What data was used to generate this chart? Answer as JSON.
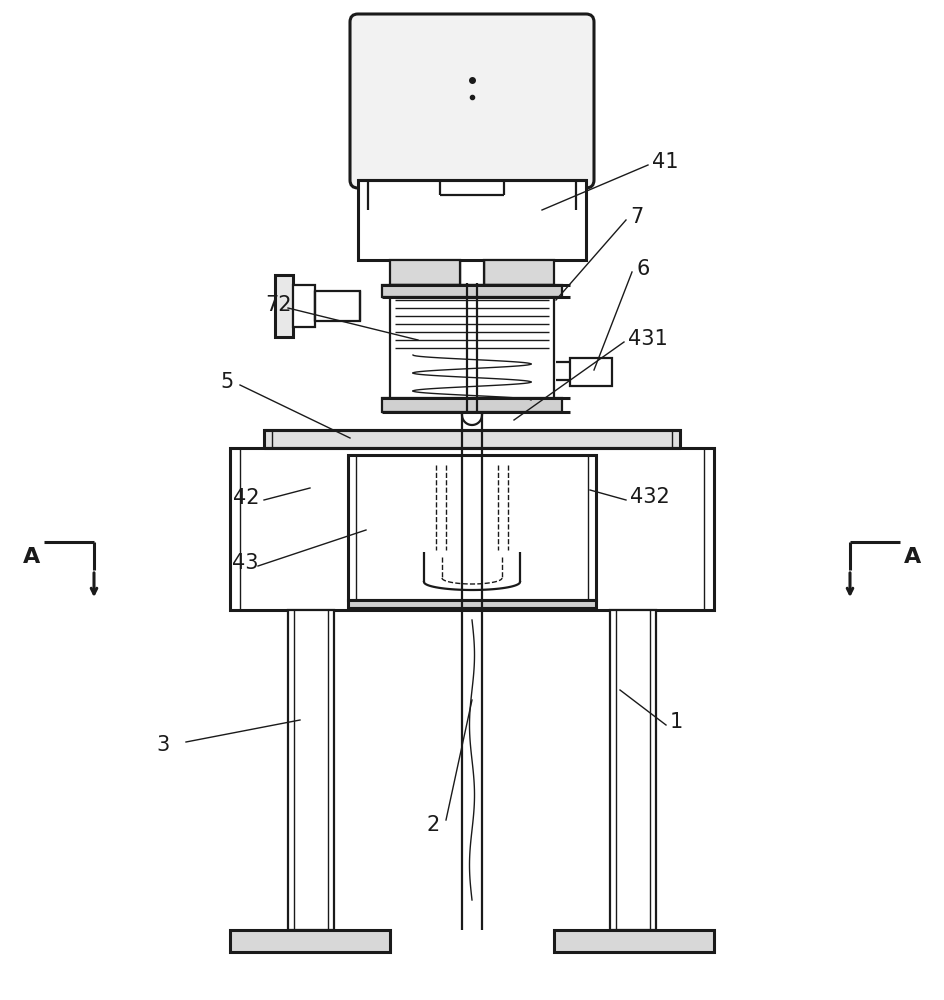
{
  "bg_color": "#ffffff",
  "lc": "#1a1a1a",
  "figsize": [
    9.44,
    10.0
  ],
  "dpi": 100,
  "lw_main": 1.6,
  "lw_thick": 2.2,
  "lw_thin": 1.0,
  "label_fs": 15
}
